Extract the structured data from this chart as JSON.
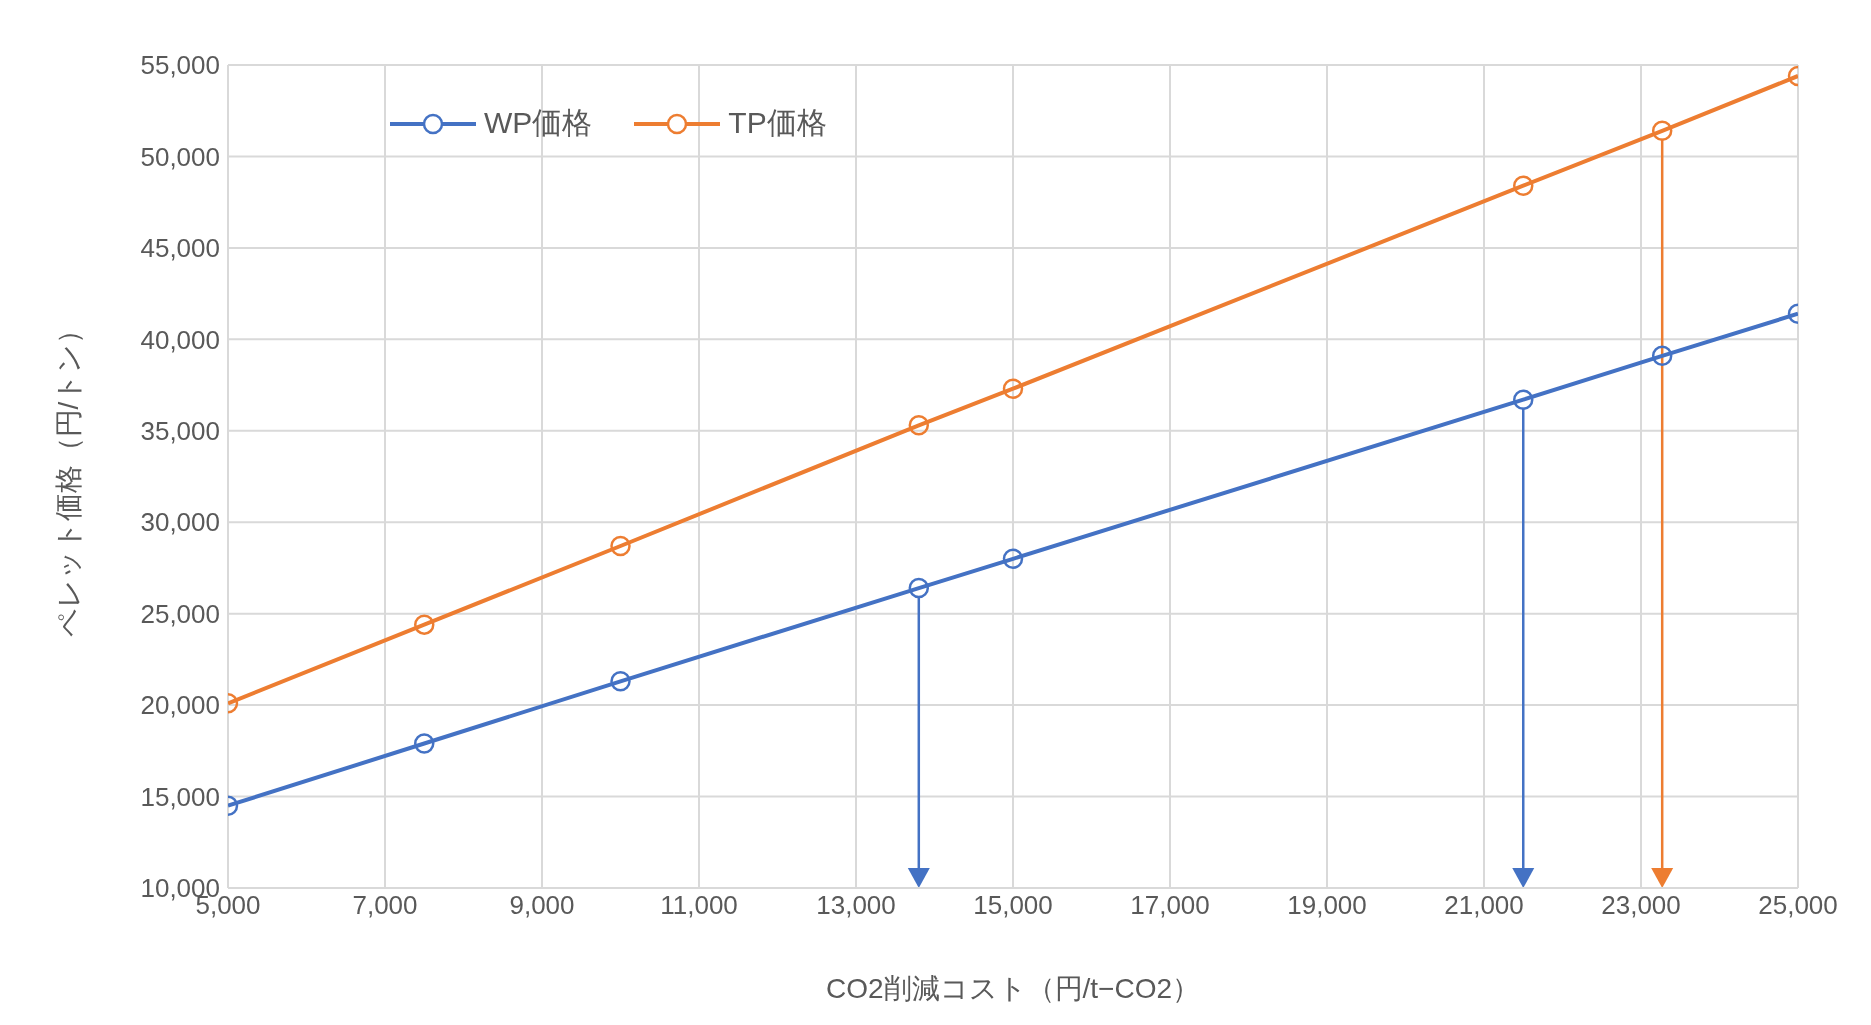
{
  "chart_data": {
    "type": "line",
    "xlabel": "CO2削減コスト（円/t−CO2）",
    "ylabel": "ペレット価格（円/トン）",
    "x": [
      5000,
      7500,
      10000,
      13800,
      15000,
      21500,
      23270,
      25000
    ],
    "series": [
      {
        "name": "WP価格",
        "color": "#4472c4",
        "values": [
          14500,
          17900,
          21300,
          26400,
          28000,
          36700,
          39100,
          41400
        ]
      },
      {
        "name": "TP価格",
        "color": "#ed7d31",
        "values": [
          20100,
          24400,
          28700,
          35300,
          37300,
          48400,
          51400,
          54400
        ]
      }
    ],
    "xlim": [
      5000,
      25000
    ],
    "xticks": [
      {
        "value": 5000,
        "label": "5,000"
      },
      {
        "value": 7000,
        "label": "7,000"
      },
      {
        "value": 9000,
        "label": "9,000"
      },
      {
        "value": 11000,
        "label": "11,000"
      },
      {
        "value": 13000,
        "label": "13,000"
      },
      {
        "value": 15000,
        "label": "15,000"
      },
      {
        "value": 17000,
        "label": "17,000"
      },
      {
        "value": 19000,
        "label": "19,000"
      },
      {
        "value": 21000,
        "label": "21,000"
      },
      {
        "value": 23000,
        "label": "23,000"
      },
      {
        "value": 25000,
        "label": "25,000"
      }
    ],
    "ylim": [
      10000,
      55000
    ],
    "yticks": [
      {
        "value": 10000,
        "label": "10,000"
      },
      {
        "value": 15000,
        "label": "15,000"
      },
      {
        "value": 20000,
        "label": "20,000"
      },
      {
        "value": 25000,
        "label": "25,000"
      },
      {
        "value": 30000,
        "label": "30,000"
      },
      {
        "value": 35000,
        "label": "35,000"
      },
      {
        "value": 40000,
        "label": "40,000"
      },
      {
        "value": 45000,
        "label": "45,000"
      },
      {
        "value": 50000,
        "label": "50,000"
      },
      {
        "value": 55000,
        "label": "55,000"
      }
    ],
    "ref_lines": [
      {
        "axis": "x",
        "value": 13800,
        "color": "#4472c4"
      },
      {
        "axis": "x",
        "value": 21500,
        "color": "#4472c4"
      },
      {
        "axis": "x",
        "value": 23270,
        "color": "#ed7d31"
      }
    ],
    "grid": true,
    "legend": "top left",
    "marker": "circle",
    "line_style": "solid"
  }
}
